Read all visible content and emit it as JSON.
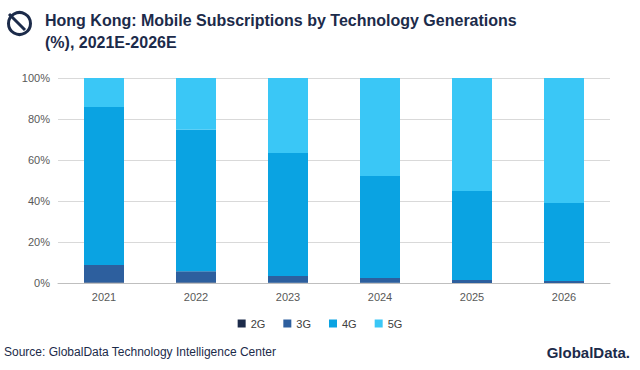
{
  "chart_data": {
    "type": "bar",
    "stacked": true,
    "title": "Hong Kong: Mobile Subscriptions by Technology Generations\n(%), 2021E-2026E",
    "annotations": [
      "Source: GlobalData Technology Intelligence Center",
      "GlobalData."
    ],
    "categories": [
      "2021",
      "2022",
      "2023",
      "2024",
      "2025",
      "2026"
    ],
    "series": [
      {
        "name": "2G",
        "color": "#1c2b4a",
        "values": [
          0.3,
          0.2,
          0.1,
          0.1,
          0.0,
          0.0
        ]
      },
      {
        "name": "3G",
        "color": "#2d5f9e",
        "values": [
          8.5,
          5.5,
          3.3,
          2.3,
          1.5,
          1.0
        ]
      },
      {
        "name": "4G",
        "color": "#0aa3e2",
        "values": [
          77.0,
          69.0,
          60.0,
          49.8,
          43.4,
          38.0
        ]
      },
      {
        "name": "5G",
        "color": "#3ac7f6",
        "values": [
          14.2,
          25.3,
          36.6,
          47.8,
          55.1,
          61.0
        ]
      }
    ],
    "ylim": [
      0,
      100
    ],
    "yticks": [
      {
        "value": 0,
        "label": "0%"
      },
      {
        "value": 20,
        "label": "20%"
      },
      {
        "value": 40,
        "label": "40%"
      },
      {
        "value": 60,
        "label": "60%"
      },
      {
        "value": 80,
        "label": "80%"
      },
      {
        "value": 100,
        "label": "100%"
      }
    ],
    "grid": true,
    "legend": "bottom"
  }
}
